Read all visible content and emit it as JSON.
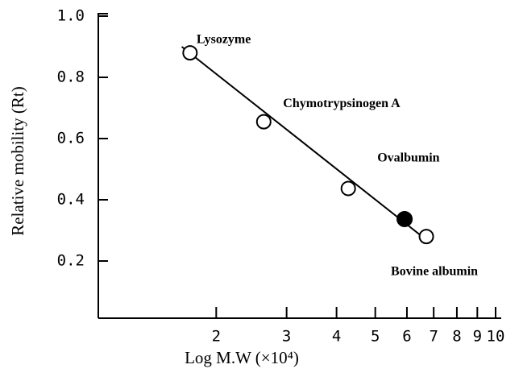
{
  "chart_data": {
    "type": "scatter",
    "xlabel": "Log M.W (×10⁴)",
    "ylabel": "Relative mobility (Rt)",
    "xscale": "log",
    "xlim": [
      1,
      10
    ],
    "xticks": [
      2,
      3,
      4,
      5,
      6,
      7,
      8,
      9,
      10
    ],
    "ylim": [
      0,
      1.0
    ],
    "yticks": [
      {
        "value": 0.2,
        "label": "0.2"
      },
      {
        "value": 0.4,
        "label": "0.4"
      },
      {
        "value": 0.6,
        "label": "0.6"
      },
      {
        "value": 0.8,
        "label": "0.8"
      },
      {
        "value": 1.0,
        "label": "1.0"
      }
    ],
    "series": [
      {
        "marker": "open",
        "color": "#000000",
        "x": [
          1.72,
          2.63,
          4.28,
          6.71
        ],
        "values": [
          0.88,
          0.655,
          0.437,
          0.28
        ],
        "labels": [
          "Lysozyme",
          "Chymotrypsinogen A",
          "Ovalbumin",
          "Bovine albumin"
        ]
      },
      {
        "marker": "filled",
        "color": "#000000",
        "x": [
          5.92
        ],
        "values": [
          0.337
        ]
      }
    ],
    "fit_line": {
      "color": "#000000",
      "x": [
        1.64,
        6.49
      ],
      "values": [
        0.9,
        0.284
      ]
    }
  }
}
